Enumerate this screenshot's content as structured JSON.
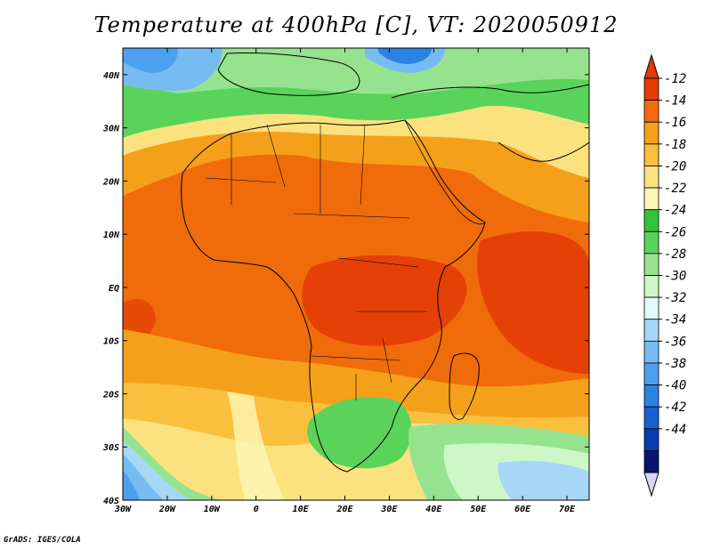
{
  "title": "Temperature at 400hPa [C], VT: 2020050912",
  "credit": "GrADS: IGES/COLA",
  "map": {
    "lon_range": [
      -30,
      75
    ],
    "lat_range": [
      -40,
      45
    ],
    "lon_ticks": [
      {
        "value": -30,
        "label": "30W"
      },
      {
        "value": -20,
        "label": "20W"
      },
      {
        "value": -10,
        "label": "10W"
      },
      {
        "value": 0,
        "label": "0"
      },
      {
        "value": 10,
        "label": "10E"
      },
      {
        "value": 20,
        "label": "20E"
      },
      {
        "value": 30,
        "label": "30E"
      },
      {
        "value": 40,
        "label": "40E"
      },
      {
        "value": 50,
        "label": "50E"
      },
      {
        "value": 60,
        "label": "60E"
      },
      {
        "value": 70,
        "label": "70E"
      }
    ],
    "lat_ticks": [
      {
        "value": 40,
        "label": "40N"
      },
      {
        "value": 30,
        "label": "30N"
      },
      {
        "value": 20,
        "label": "20N"
      },
      {
        "value": 10,
        "label": "10N"
      },
      {
        "value": 0,
        "label": "EQ"
      },
      {
        "value": -10,
        "label": "10S"
      },
      {
        "value": -20,
        "label": "20S"
      },
      {
        "value": -30,
        "label": "30S"
      },
      {
        "value": -40,
        "label": "40S"
      }
    ]
  },
  "colorbar": {
    "labels": [
      "-12",
      "-14",
      "-16",
      "-18",
      "-20",
      "-22",
      "-24",
      "-26",
      "-28",
      "-30",
      "-32",
      "-34",
      "-36",
      "-38",
      "-40",
      "-42",
      "-44"
    ],
    "colors_top_to_bottom": [
      "#e33a06",
      "#f06c0a",
      "#f5a01a",
      "#f9bf3d",
      "#fbe27e",
      "#fef7b8",
      "#32c33b",
      "#5ad35a",
      "#96e38f",
      "#cdf6c9",
      "#e2fafb",
      "#a7d7f7",
      "#76bcf3",
      "#4da0ef",
      "#2b82e4",
      "#1860d0",
      "#0a3cb2",
      "#091470"
    ],
    "over_color": "#e33a06",
    "under_color": "#d8d4f8"
  }
}
